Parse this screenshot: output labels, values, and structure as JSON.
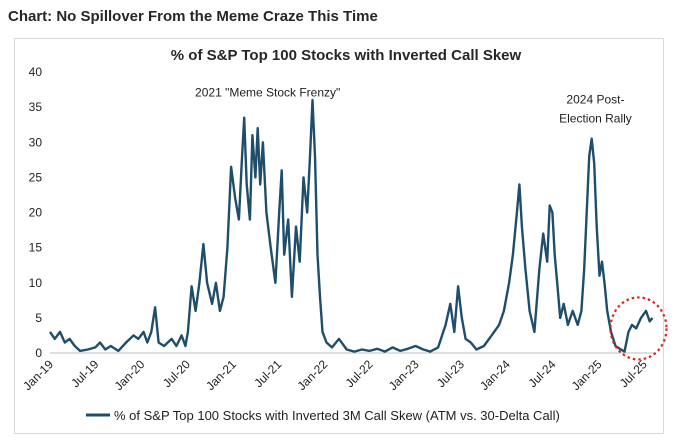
{
  "headline": "Chart: No Spillover From the Meme Craze This Time",
  "chart_data": {
    "type": "line",
    "title": "% of S&P Top 100 Stocks with Inverted Call Skew",
    "xlabel": "",
    "ylabel": "",
    "ylim": [
      0,
      40
    ],
    "yticks": [
      0,
      5,
      10,
      15,
      20,
      25,
      30,
      35,
      40
    ],
    "xlim": [
      "2019-01-01",
      "2025-08-15"
    ],
    "xtick_labels": [
      "Jan-19",
      "Jul-19",
      "Jan-20",
      "Jul-20",
      "Jan-21",
      "Jul-21",
      "Jan-22",
      "Jul-22",
      "Jan-23",
      "Jul-23",
      "Jan-24",
      "Jul-24",
      "Jan-25",
      "Jul-25"
    ],
    "xtick_dates": [
      "2019-01-01",
      "2019-07-01",
      "2020-01-01",
      "2020-07-01",
      "2021-01-01",
      "2021-07-01",
      "2022-01-01",
      "2022-07-01",
      "2023-01-01",
      "2023-07-01",
      "2024-01-01",
      "2024-07-01",
      "2025-01-01",
      "2025-07-01"
    ],
    "grid": false,
    "legend_position": "bottom",
    "series": [
      {
        "name": "% of S&P Top 100 Stocks with Inverted 3M Call Skew (ATM vs. 30-Delta Call)",
        "color": "#1f4e6b",
        "points": [
          [
            "2019-01-01",
            3
          ],
          [
            "2019-01-20",
            2
          ],
          [
            "2019-02-10",
            3
          ],
          [
            "2019-03-01",
            1.5
          ],
          [
            "2019-03-20",
            2
          ],
          [
            "2019-04-10",
            1
          ],
          [
            "2019-05-01",
            0.3
          ],
          [
            "2019-06-01",
            0.5
          ],
          [
            "2019-07-01",
            0.8
          ],
          [
            "2019-07-20",
            1.5
          ],
          [
            "2019-08-10",
            0.5
          ],
          [
            "2019-09-01",
            1
          ],
          [
            "2019-10-01",
            0.3
          ],
          [
            "2019-11-01",
            1.5
          ],
          [
            "2019-12-01",
            2.5
          ],
          [
            "2019-12-20",
            2
          ],
          [
            "2020-01-10",
            3
          ],
          [
            "2020-01-25",
            1.5
          ],
          [
            "2020-02-10",
            3
          ],
          [
            "2020-02-25",
            6.5
          ],
          [
            "2020-03-10",
            1.5
          ],
          [
            "2020-04-01",
            1
          ],
          [
            "2020-05-01",
            2
          ],
          [
            "2020-05-20",
            1
          ],
          [
            "2020-06-10",
            2.5
          ],
          [
            "2020-06-25",
            1
          ],
          [
            "2020-07-05",
            3
          ],
          [
            "2020-07-20",
            9.5
          ],
          [
            "2020-08-05",
            6
          ],
          [
            "2020-08-20",
            10
          ],
          [
            "2020-09-05",
            15.5
          ],
          [
            "2020-09-20",
            10
          ],
          [
            "2020-10-10",
            7
          ],
          [
            "2020-10-25",
            10
          ],
          [
            "2020-11-10",
            6
          ],
          [
            "2020-11-25",
            8
          ],
          [
            "2020-12-10",
            15
          ],
          [
            "2020-12-25",
            26.5
          ],
          [
            "2021-01-10",
            22
          ],
          [
            "2021-01-25",
            19
          ],
          [
            "2021-02-05",
            27
          ],
          [
            "2021-02-15",
            33.5
          ],
          [
            "2021-02-25",
            24
          ],
          [
            "2021-03-10",
            19
          ],
          [
            "2021-03-20",
            31
          ],
          [
            "2021-04-01",
            25
          ],
          [
            "2021-04-10",
            32
          ],
          [
            "2021-04-20",
            24
          ],
          [
            "2021-05-01",
            30
          ],
          [
            "2021-05-15",
            20
          ],
          [
            "2021-06-01",
            15
          ],
          [
            "2021-06-20",
            10
          ],
          [
            "2021-07-05",
            20
          ],
          [
            "2021-07-15",
            26
          ],
          [
            "2021-07-25",
            14
          ],
          [
            "2021-08-10",
            19
          ],
          [
            "2021-08-25",
            8
          ],
          [
            "2021-09-10",
            18
          ],
          [
            "2021-09-25",
            13
          ],
          [
            "2021-10-10",
            25
          ],
          [
            "2021-10-25",
            20
          ],
          [
            "2021-11-05",
            28
          ],
          [
            "2021-11-15",
            36
          ],
          [
            "2021-11-25",
            28
          ],
          [
            "2021-12-05",
            14
          ],
          [
            "2021-12-15",
            8
          ],
          [
            "2021-12-25",
            3
          ],
          [
            "2022-01-10",
            1.5
          ],
          [
            "2022-02-01",
            0.8
          ],
          [
            "2022-03-01",
            2
          ],
          [
            "2022-04-01",
            0.5
          ],
          [
            "2022-05-01",
            0.2
          ],
          [
            "2022-06-01",
            0.5
          ],
          [
            "2022-07-01",
            0.3
          ],
          [
            "2022-08-01",
            0.6
          ],
          [
            "2022-09-01",
            0.2
          ],
          [
            "2022-10-01",
            0.8
          ],
          [
            "2022-11-01",
            0.3
          ],
          [
            "2022-12-01",
            0.6
          ],
          [
            "2023-01-01",
            1
          ],
          [
            "2023-02-01",
            0.5
          ],
          [
            "2023-03-01",
            0.2
          ],
          [
            "2023-04-01",
            0.8
          ],
          [
            "2023-05-01",
            4
          ],
          [
            "2023-05-20",
            7
          ],
          [
            "2023-06-05",
            3
          ],
          [
            "2023-06-20",
            9.5
          ],
          [
            "2023-07-05",
            5
          ],
          [
            "2023-07-20",
            2
          ],
          [
            "2023-08-10",
            1.5
          ],
          [
            "2023-09-01",
            0.5
          ],
          [
            "2023-10-01",
            1
          ],
          [
            "2023-11-01",
            2.5
          ],
          [
            "2023-12-01",
            4
          ],
          [
            "2023-12-20",
            6
          ],
          [
            "2024-01-10",
            10
          ],
          [
            "2024-01-25",
            14
          ],
          [
            "2024-02-10",
            20
          ],
          [
            "2024-02-20",
            24
          ],
          [
            "2024-03-01",
            18
          ],
          [
            "2024-03-15",
            12
          ],
          [
            "2024-04-01",
            6
          ],
          [
            "2024-04-20",
            3
          ],
          [
            "2024-05-10",
            12
          ],
          [
            "2024-05-25",
            17
          ],
          [
            "2024-06-10",
            13
          ],
          [
            "2024-06-20",
            21
          ],
          [
            "2024-07-01",
            20
          ],
          [
            "2024-07-10",
            14
          ],
          [
            "2024-07-20",
            10
          ],
          [
            "2024-08-01",
            5
          ],
          [
            "2024-08-15",
            7
          ],
          [
            "2024-09-01",
            4
          ],
          [
            "2024-09-20",
            6
          ],
          [
            "2024-10-10",
            4
          ],
          [
            "2024-10-25",
            6
          ],
          [
            "2024-11-05",
            12
          ],
          [
            "2024-11-15",
            20
          ],
          [
            "2024-11-25",
            28
          ],
          [
            "2024-12-05",
            30.5
          ],
          [
            "2024-12-15",
            27
          ],
          [
            "2024-12-25",
            18
          ],
          [
            "2025-01-05",
            11
          ],
          [
            "2025-01-15",
            13
          ],
          [
            "2025-01-25",
            10
          ],
          [
            "2025-02-05",
            6
          ],
          [
            "2025-02-20",
            3
          ],
          [
            "2025-03-10",
            1
          ],
          [
            "2025-04-01",
            0.5
          ],
          [
            "2025-04-15",
            0.2
          ],
          [
            "2025-05-01",
            3
          ],
          [
            "2025-05-15",
            4
          ],
          [
            "2025-06-01",
            3.5
          ],
          [
            "2025-06-20",
            5
          ],
          [
            "2025-07-10",
            6
          ],
          [
            "2025-07-25",
            4.5
          ],
          [
            "2025-08-05",
            5
          ]
        ]
      }
    ],
    "annotations": [
      {
        "text": "2021 \"Meme Stock Frenzy\"",
        "date": "2021-05-20",
        "y": 36.5
      },
      {
        "text": "2024 Post-",
        "date": "2024-12-20",
        "y": 35.5
      },
      {
        "text": "Election Rally",
        "date": "2024-12-20",
        "y": 32.8
      }
    ],
    "highlight": {
      "shape": "dotted-ellipse",
      "color": "#e0201e",
      "center_date": "2025-06-10",
      "center_y": 3.5
    }
  }
}
